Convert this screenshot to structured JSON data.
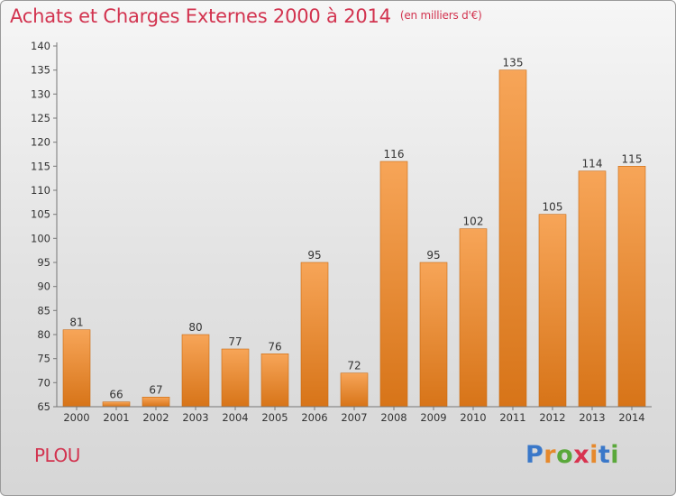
{
  "header": {
    "title": "Achats et Charges Externes 2000 à 2014",
    "unit_note": "(en milliers d'€)"
  },
  "footer": {
    "commune": "PLOU",
    "logo_text": "Proxiti",
    "logo_colors": [
      "#3a78c9",
      "#e6892c",
      "#5aa83a",
      "#d8334f",
      "#e6892c",
      "#3a78c9",
      "#5aa83a"
    ]
  },
  "colors": {
    "title": "#d2334f",
    "bar_top": "#f7a558",
    "bar_bottom": "#d77418",
    "axis": "#777777",
    "text": "#333333"
  },
  "chart_data": {
    "type": "bar",
    "title": "Achats et Charges Externes 2000 à 2014",
    "subtitle": "(en milliers d'€)",
    "categories": [
      "2000",
      "2001",
      "2002",
      "2003",
      "2004",
      "2005",
      "2006",
      "2007",
      "2008",
      "2009",
      "2010",
      "2011",
      "2012",
      "2013",
      "2014"
    ],
    "values": [
      81,
      66,
      67,
      80,
      77,
      76,
      95,
      72,
      116,
      95,
      102,
      135,
      105,
      114,
      115
    ],
    "ylim": [
      65,
      140
    ],
    "yticks": [
      65,
      70,
      75,
      80,
      85,
      90,
      95,
      100,
      105,
      110,
      115,
      120,
      125,
      130,
      135,
      140
    ],
    "xlabel": "",
    "ylabel": "",
    "grid": false,
    "legend": "none"
  }
}
